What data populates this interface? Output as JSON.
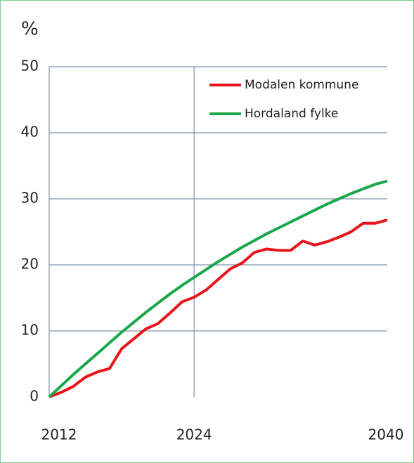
{
  "chart_data": {
    "type": "line",
    "y_label": "%",
    "x": [
      2012,
      2013,
      2014,
      2015,
      2016,
      2017,
      2018,
      2019,
      2020,
      2021,
      2022,
      2023,
      2024,
      2025,
      2026,
      2027,
      2028,
      2029,
      2030,
      2031,
      2032,
      2033,
      2034,
      2035,
      2036,
      2037,
      2038,
      2039,
      2040
    ],
    "series": [
      {
        "name": "Modalen kommune",
        "color": "#e8141b",
        "values": [
          0,
          0.7,
          1.6,
          3.0,
          3.8,
          4.3,
          7.3,
          8.8,
          10.3,
          11.1,
          12.7,
          14.4,
          15.1,
          16.2,
          17.8,
          19.4,
          20.3,
          21.9,
          22.4,
          22.2,
          22.2,
          23.6,
          23.0,
          23.5,
          24.2,
          25.0,
          26.3,
          26.3,
          26.8
        ]
      },
      {
        "name": "Hordaland fylke",
        "color": "#1aa64a",
        "values": [
          0,
          1.7,
          3.4,
          5.0,
          6.6,
          8.2,
          9.8,
          11.3,
          12.8,
          14.2,
          15.6,
          16.9,
          18.1,
          19.3,
          20.5,
          21.6,
          22.7,
          23.7,
          24.7,
          25.6,
          26.5,
          27.4,
          28.3,
          29.2,
          30.0,
          30.8,
          31.5,
          32.2,
          32.7
        ]
      }
    ],
    "xlim": [
      2012,
      2040
    ],
    "xticks": [
      2012,
      2024,
      2040
    ],
    "ylim": [
      0,
      50
    ],
    "yticks": [
      0,
      10,
      20,
      30,
      40,
      50
    ],
    "grid": true,
    "legend": "upper right"
  }
}
